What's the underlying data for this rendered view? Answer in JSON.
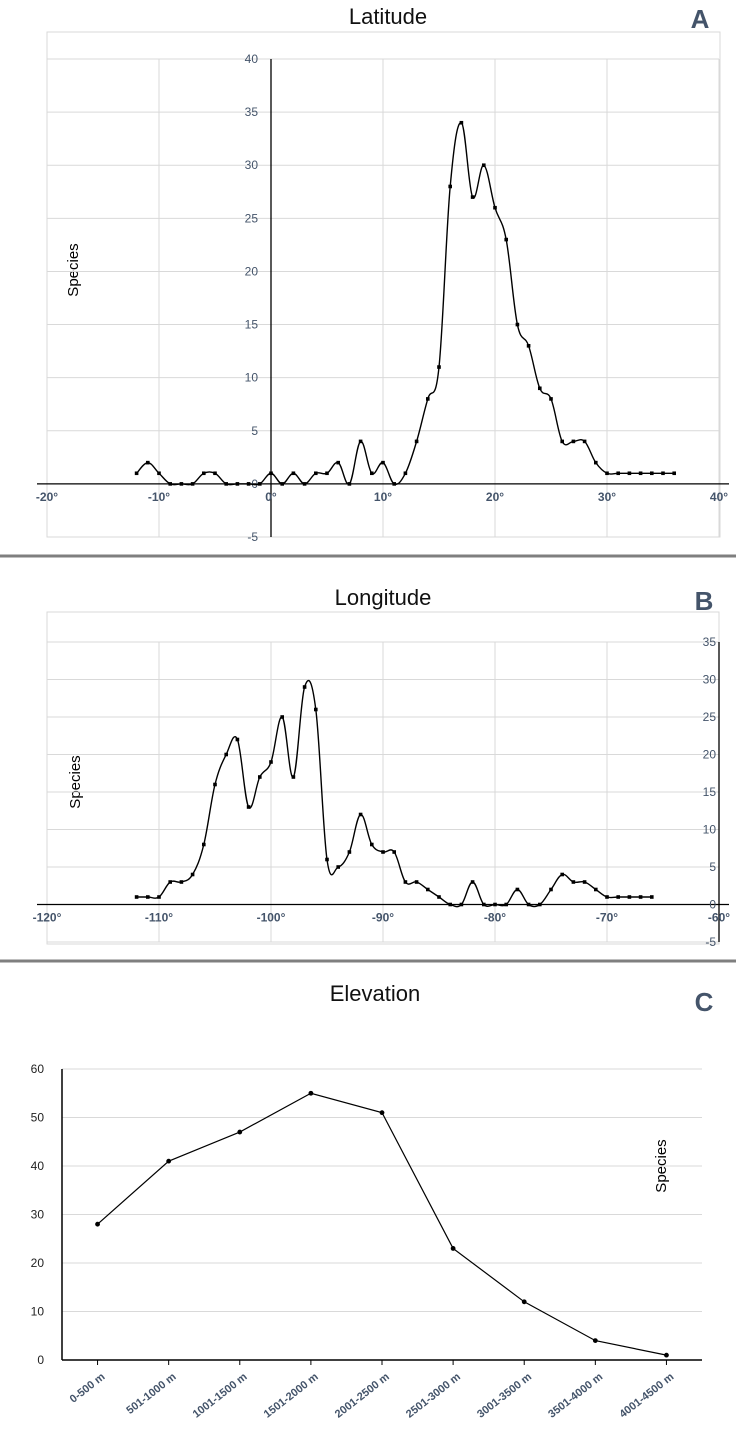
{
  "colors": {
    "grid": "#d9d9d9",
    "axis": "#000000",
    "line": "#000000",
    "separator": "#7f7f7f",
    "letter": "#44546a"
  },
  "chart_data": [
    {
      "id": "A",
      "letter": "A",
      "type": "line",
      "title": "Latitude",
      "xlabel": "",
      "ylabel": "Species",
      "xlim": [
        -20,
        40
      ],
      "ylim": [
        -5,
        40
      ],
      "y_ticks": [
        "-5",
        "0",
        "5",
        "10",
        "15",
        "20",
        "25",
        "30",
        "35",
        "40"
      ],
      "x_ticks": [
        "-20°",
        "-10°",
        "0°",
        "10°",
        "20°",
        "30°",
        "40°"
      ],
      "x": [
        -12,
        -11,
        -10,
        -9,
        -8,
        -7,
        -6,
        -5,
        -4,
        -3,
        -2,
        -1,
        0,
        1,
        2,
        3,
        4,
        5,
        6,
        7,
        8,
        9,
        10,
        11,
        12,
        13,
        14,
        15,
        16,
        17,
        18,
        19,
        20,
        21,
        22,
        23,
        24,
        25,
        26,
        27,
        28,
        29,
        30,
        31,
        32,
        33,
        34,
        35,
        36
      ],
      "y": [
        1,
        2,
        1,
        0,
        0,
        0,
        1,
        1,
        0,
        0,
        0,
        0,
        1,
        0,
        1,
        0,
        1,
        1,
        2,
        0,
        4,
        1,
        2,
        0,
        1,
        4,
        8,
        11,
        28,
        34,
        27,
        30,
        26,
        23,
        15,
        13,
        9,
        8,
        4,
        4,
        4,
        2,
        1,
        1,
        1,
        1,
        1,
        1,
        1
      ]
    },
    {
      "id": "B",
      "letter": "B",
      "type": "line",
      "title": "Longitude",
      "xlabel": "",
      "ylabel": "Species",
      "xlim": [
        -120,
        -60
      ],
      "ylim": [
        -5,
        35
      ],
      "y_ticks": [
        "-5",
        "0",
        "5",
        "10",
        "15",
        "20",
        "25",
        "30",
        "35"
      ],
      "x_ticks": [
        "-120°",
        "-110°",
        "-100°",
        "-90°",
        "-80°",
        "-70°",
        "-60°"
      ],
      "x": [
        -112,
        -111,
        -110,
        -109,
        -108,
        -107,
        -106,
        -105,
        -104,
        -103,
        -102,
        -101,
        -100,
        -99,
        -98,
        -97,
        -96,
        -95,
        -94,
        -93,
        -92,
        -91,
        -90,
        -89,
        -88,
        -87,
        -86,
        -85,
        -84,
        -83,
        -82,
        -81,
        -80,
        -79,
        -78,
        -77,
        -76,
        -75,
        -74,
        -73,
        -72,
        -71,
        -70,
        -69,
        -68,
        -67,
        -66
      ],
      "y": [
        1,
        1,
        1,
        3,
        3,
        4,
        8,
        16,
        20,
        22,
        13,
        17,
        19,
        25,
        17,
        29,
        26,
        6,
        5,
        7,
        12,
        8,
        7,
        7,
        3,
        3,
        2,
        1,
        0,
        0,
        3,
        0,
        0,
        0,
        2,
        0,
        0,
        2,
        4,
        3,
        3,
        2,
        1,
        1,
        1,
        1,
        1
      ]
    },
    {
      "id": "C",
      "letter": "C",
      "type": "line",
      "title": "Elevation",
      "xlabel": "",
      "ylabel": "Species",
      "ylim": [
        0,
        60
      ],
      "y_ticks": [
        "0",
        "10",
        "20",
        "30",
        "40",
        "50",
        "60"
      ],
      "categories": [
        "0-500 m",
        "501-1000 m",
        "1001-1500 m",
        "1501-2000 m",
        "2001-2500 m",
        "2501-3000 m",
        "3001-3500 m",
        "3501-4000 m",
        "4001-4500 m"
      ],
      "values": [
        28,
        41,
        47,
        55,
        51,
        23,
        12,
        4,
        1
      ]
    }
  ]
}
